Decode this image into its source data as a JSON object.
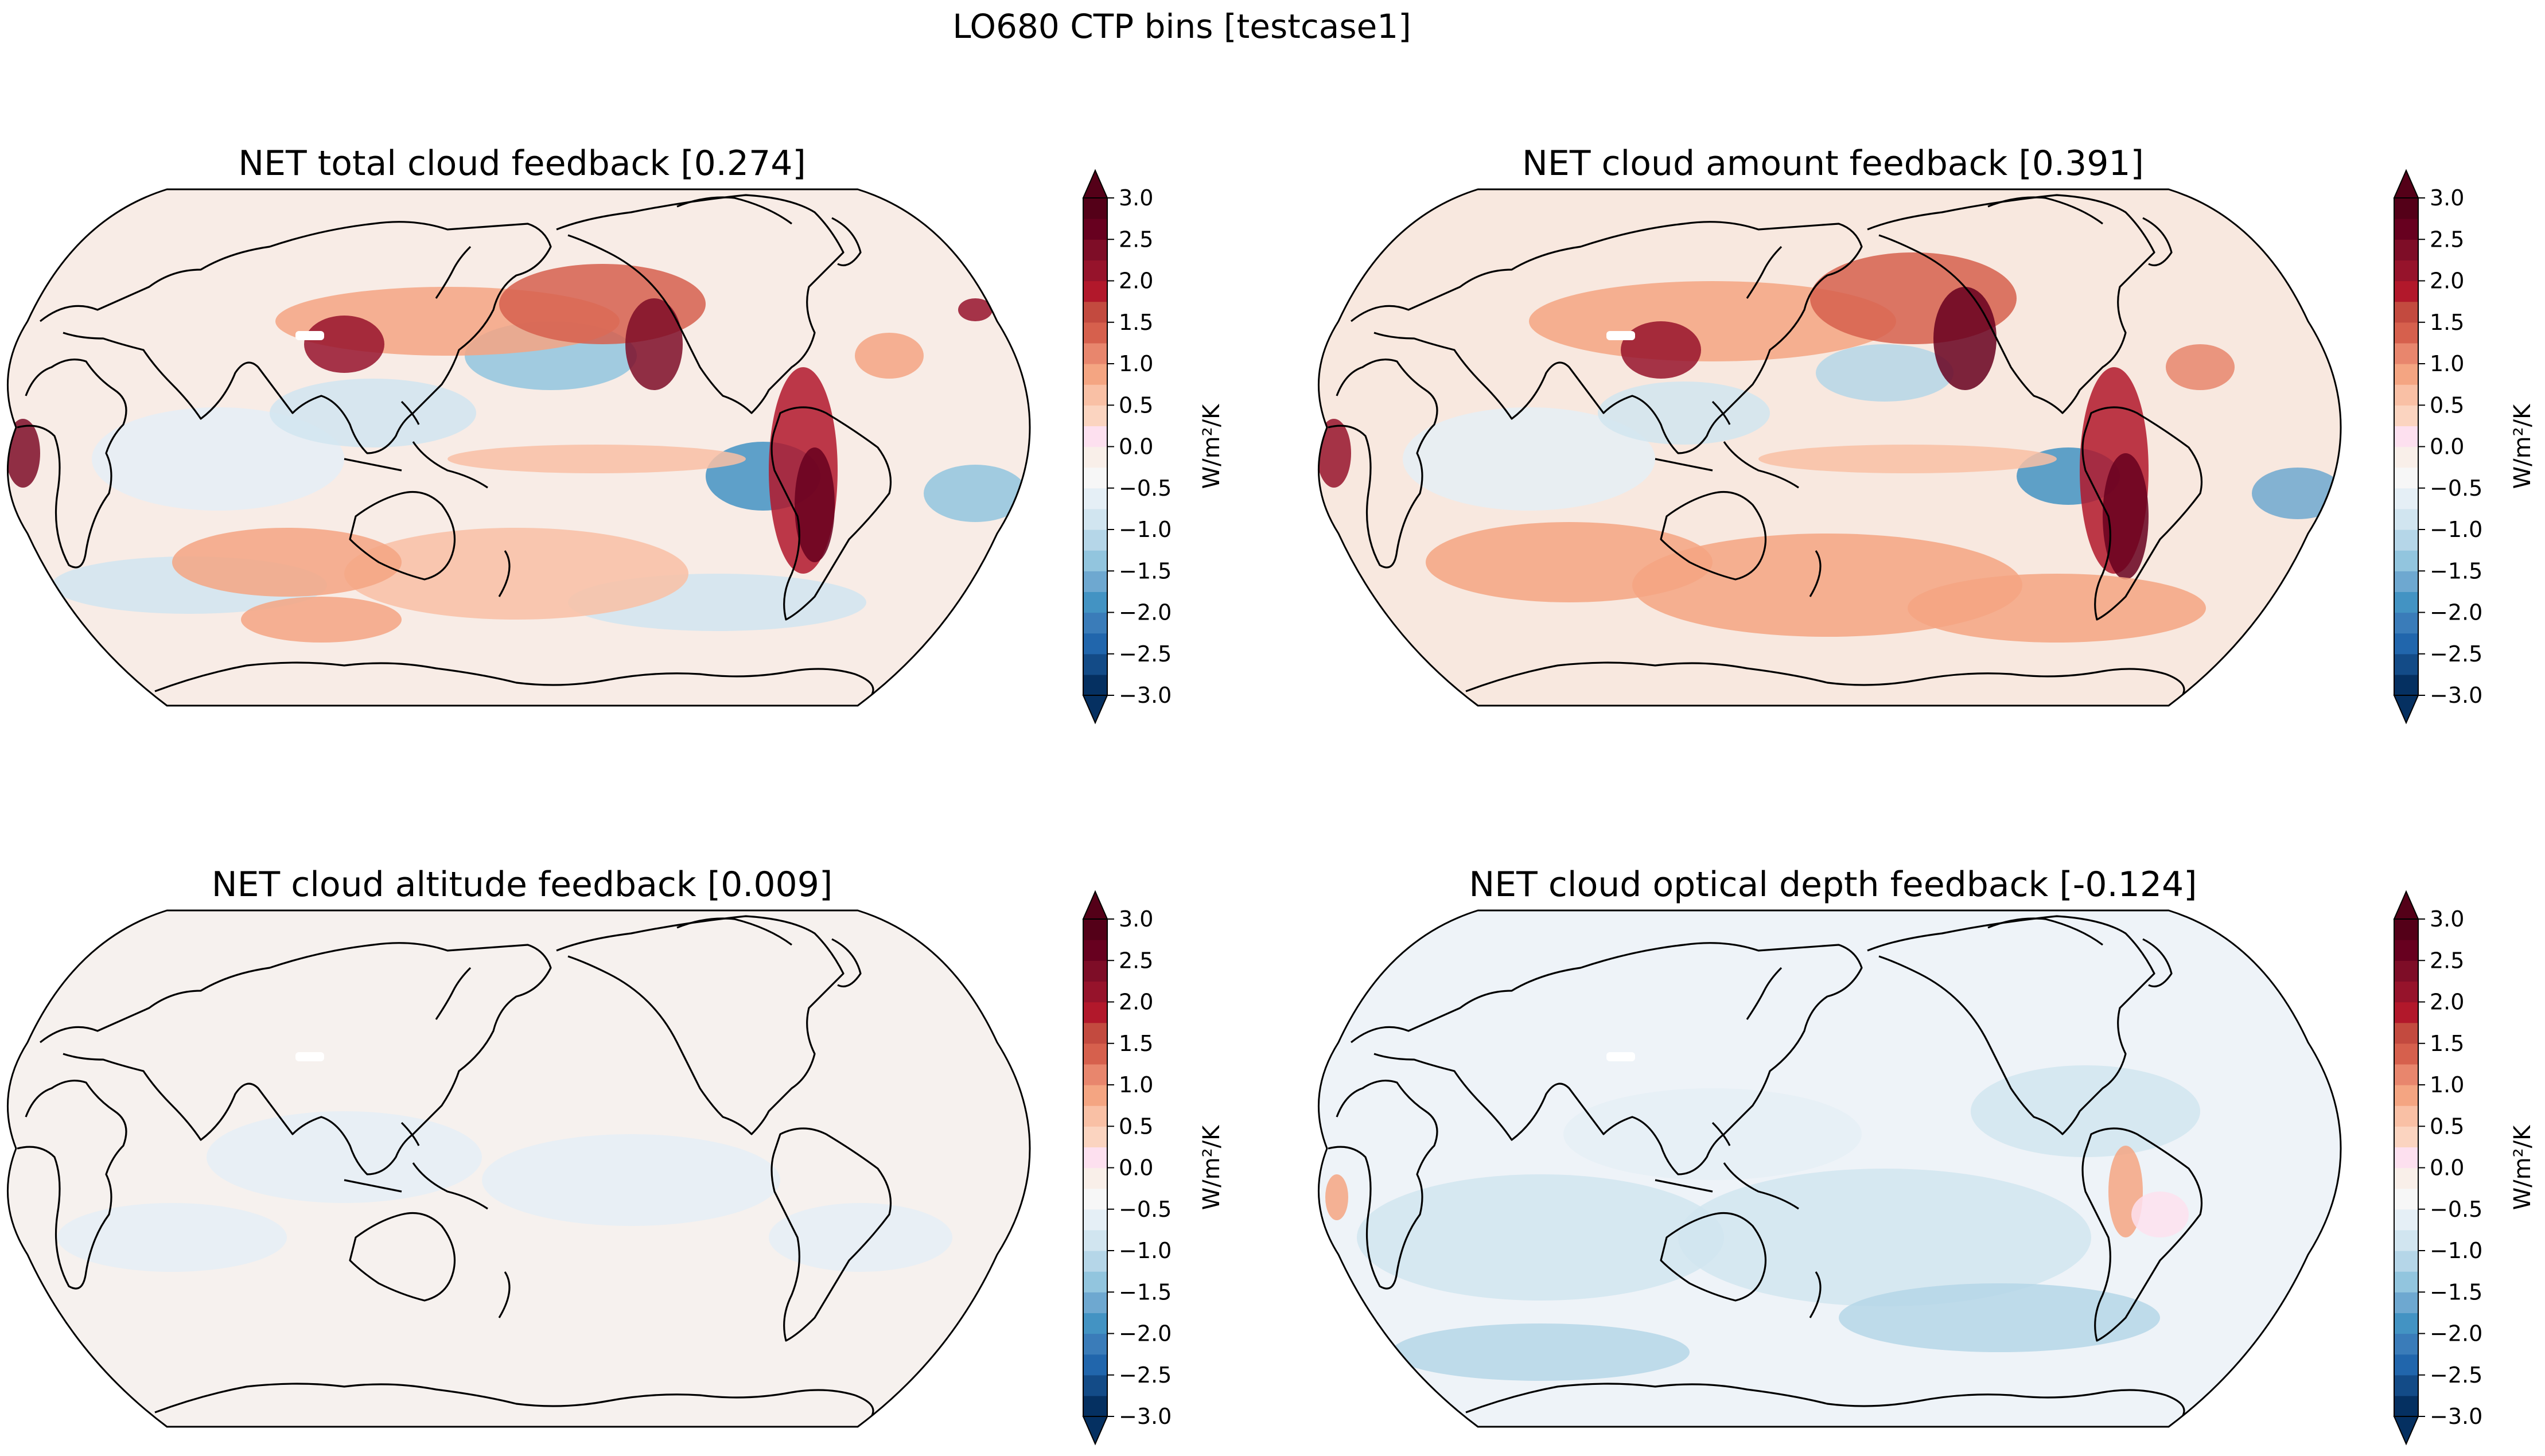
{
  "figure": {
    "suptitle": "LO680 CTP bins [testcase1]"
  },
  "chart_data": [
    {
      "type": "heatmap",
      "panel": "top-left",
      "title": "NET total cloud feedback [0.274]",
      "projection": "Robinson, Pacific-centred, filled contours with coastlines",
      "colorbar": {
        "label": "W/m²/K",
        "levels": [
          -3.0,
          -2.75,
          -2.5,
          -2.25,
          -2.0,
          -1.75,
          -1.5,
          -1.25,
          -1.0,
          -0.75,
          -0.5,
          -0.25,
          0.0,
          0.25,
          0.5,
          0.75,
          1.0,
          1.25,
          1.5,
          1.75,
          2.0,
          2.25,
          2.5,
          2.75,
          3.0
        ],
        "ticks": [
          3.0,
          2.5,
          2.0,
          1.5,
          1.0,
          0.5,
          0.0,
          -0.5,
          -1.0,
          -1.5,
          -2.0,
          -2.5,
          -3.0
        ],
        "tick_labels": [
          "3.0",
          "2.5",
          "2.0",
          "1.5",
          "1.0",
          "0.5",
          "0.0",
          "−0.5",
          "−1.0",
          "−1.5",
          "−2.0",
          "−2.5",
          "−3.0"
        ],
        "extend": "both",
        "colormap": "RdBu_r"
      }
    },
    {
      "type": "heatmap",
      "panel": "top-right",
      "title": "NET cloud amount feedback [0.391]",
      "projection": "Robinson, Pacific-centred, filled contours with coastlines",
      "colorbar": {
        "label": "W/m²/K",
        "levels": [
          -3.0,
          -2.75,
          -2.5,
          -2.25,
          -2.0,
          -1.75,
          -1.5,
          -1.25,
          -1.0,
          -0.75,
          -0.5,
          -0.25,
          0.0,
          0.25,
          0.5,
          0.75,
          1.0,
          1.25,
          1.5,
          1.75,
          2.0,
          2.25,
          2.5,
          2.75,
          3.0
        ],
        "ticks": [
          3.0,
          2.5,
          2.0,
          1.5,
          1.0,
          0.5,
          0.0,
          -0.5,
          -1.0,
          -1.5,
          -2.0,
          -2.5,
          -3.0
        ],
        "tick_labels": [
          "3.0",
          "2.5",
          "2.0",
          "1.5",
          "1.0",
          "0.5",
          "0.0",
          "−0.5",
          "−1.0",
          "−1.5",
          "−2.0",
          "−2.5",
          "−3.0"
        ],
        "extend": "both",
        "colormap": "RdBu_r"
      }
    },
    {
      "type": "heatmap",
      "panel": "bottom-left",
      "title": "NET cloud altitude feedback [0.009]",
      "projection": "Robinson, Pacific-centred, filled contours with coastlines",
      "colorbar": {
        "label": "W/m²/K",
        "levels": [
          -3.0,
          -2.75,
          -2.5,
          -2.25,
          -2.0,
          -1.75,
          -1.5,
          -1.25,
          -1.0,
          -0.75,
          -0.5,
          -0.25,
          0.0,
          0.25,
          0.5,
          0.75,
          1.0,
          1.25,
          1.5,
          1.75,
          2.0,
          2.25,
          2.5,
          2.75,
          3.0
        ],
        "ticks": [
          3.0,
          2.5,
          2.0,
          1.5,
          1.0,
          0.5,
          0.0,
          -0.5,
          -1.0,
          -1.5,
          -2.0,
          -2.5,
          -3.0
        ],
        "tick_labels": [
          "3.0",
          "2.5",
          "2.0",
          "1.5",
          "1.0",
          "0.5",
          "0.0",
          "−0.5",
          "−1.0",
          "−1.5",
          "−2.0",
          "−2.5",
          "−3.0"
        ],
        "extend": "both",
        "colormap": "RdBu_r"
      }
    },
    {
      "type": "heatmap",
      "panel": "bottom-right",
      "title": "NET cloud optical depth feedback [-0.124]",
      "projection": "Robinson, Pacific-centred, filled contours with coastlines",
      "colorbar": {
        "label": "W/m²/K",
        "levels": [
          -3.0,
          -2.75,
          -2.5,
          -2.25,
          -2.0,
          -1.75,
          -1.5,
          -1.25,
          -1.0,
          -0.75,
          -0.5,
          -0.25,
          0.0,
          0.25,
          0.5,
          0.75,
          1.0,
          1.25,
          1.5,
          1.75,
          2.0,
          2.25,
          2.5,
          2.75,
          3.0
        ],
        "ticks": [
          3.0,
          2.5,
          2.0,
          1.5,
          1.0,
          0.5,
          0.0,
          -0.5,
          -1.0,
          -1.5,
          -2.0,
          -2.5,
          -3.0
        ],
        "tick_labels": [
          "3.0",
          "2.5",
          "2.0",
          "1.5",
          "1.0",
          "0.5",
          "0.0",
          "−0.5",
          "−1.0",
          "−1.5",
          "−2.0",
          "−2.5",
          "−3.0"
        ],
        "extend": "both",
        "colormap": "RdBu_r"
      }
    }
  ],
  "colors": {
    "palette": [
      "#053061",
      "#134b87",
      "#2166ac",
      "#3a7cb9",
      "#4393c3",
      "#6ea8d0",
      "#92c5de",
      "#b5d6e8",
      "#d1e5f0",
      "#e5eff6",
      "#f7f7f7",
      "#f9efe9",
      "#fde0ef",
      "#fbd4c0",
      "#f9c0a5",
      "#f4a582",
      "#e8866d",
      "#d6604d",
      "#c34a3f",
      "#b2182b",
      "#96132b",
      "#7e0d27",
      "#67001f",
      "#540018"
    ],
    "coast": "#000000",
    "neutral_ocean": "#f6f0ed"
  }
}
